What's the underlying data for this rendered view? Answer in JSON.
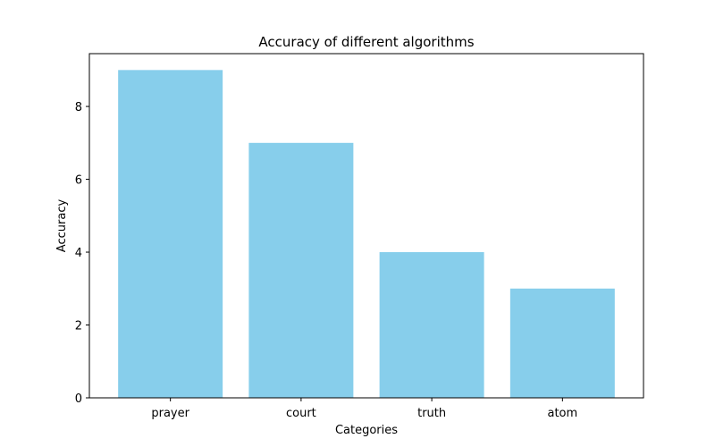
{
  "chart_data": {
    "type": "bar",
    "title": "Accuracy of different algorithms",
    "xlabel": "Categories",
    "ylabel": "Accuracy",
    "categories": [
      "prayer",
      "court",
      "truth",
      "atom"
    ],
    "values": [
      9,
      7,
      4,
      3
    ],
    "ylim": [
      0,
      9.45
    ],
    "yticks": [
      0,
      2,
      4,
      6,
      8
    ],
    "grid": false,
    "bar_color": "#87CEEB"
  }
}
